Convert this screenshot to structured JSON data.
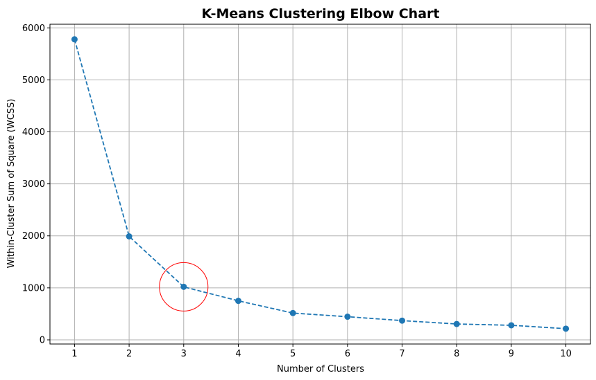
{
  "chart_data": {
    "type": "line",
    "title": "K-Means Clustering Elbow Chart",
    "xlabel": "Number of Clusters",
    "ylabel": "Within-Cluster Sum of Square (WCSS)",
    "x": [
      1,
      2,
      3,
      4,
      5,
      6,
      7,
      8,
      9,
      10
    ],
    "series": [
      {
        "values": [
          5780,
          1990,
          1020,
          750,
          515,
          445,
          370,
          305,
          280,
          215
        ],
        "color": "#1f77b4",
        "line_style": "dashed",
        "marker": "circle"
      }
    ],
    "xlim": [
      0.55,
      10.45
    ],
    "ylim": [
      -80,
      6070
    ],
    "xticks": [
      "1",
      "2",
      "3",
      "4",
      "5",
      "6",
      "7",
      "8",
      "9",
      "10"
    ],
    "yticks": [
      "0",
      "1000",
      "2000",
      "3000",
      "4000",
      "5000",
      "6000"
    ],
    "grid": true,
    "annotation": {
      "shape": "circle",
      "x": 3,
      "y": 1020,
      "color": "#ff0000"
    }
  }
}
